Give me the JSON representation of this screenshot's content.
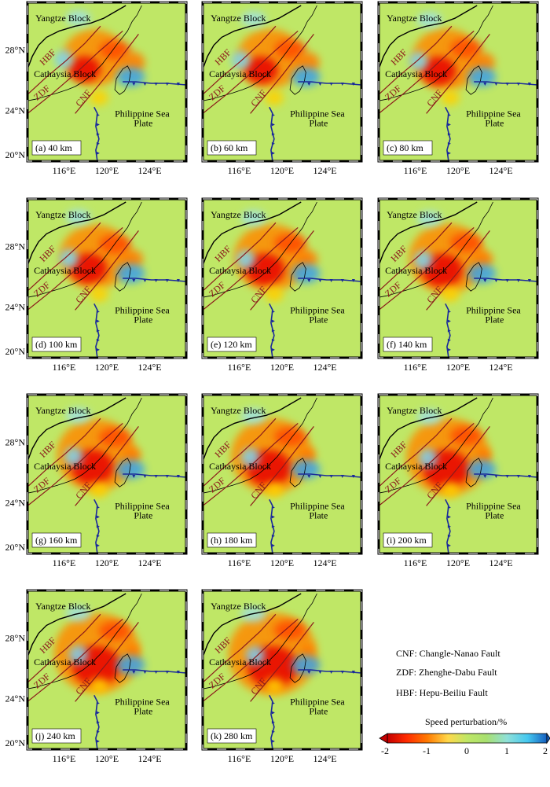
{
  "panels": [
    {
      "label": "(a) 40 km"
    },
    {
      "label": "(b) 60 km"
    },
    {
      "label": "(c) 80 km"
    },
    {
      "label": "(d) 100 km"
    },
    {
      "label": "(e) 120 km"
    },
    {
      "label": "(f) 140 km"
    },
    {
      "label": "(g) 160 km"
    },
    {
      "label": "(h) 180 km"
    },
    {
      "label": "(i) 200 km"
    },
    {
      "label": "(j) 240 km"
    },
    {
      "label": "(k) 280 km"
    }
  ],
  "map_labels": {
    "yangtze": "Yangtze Block",
    "cathaysia": "Cathaysia Block",
    "philippine_1": "Philippine Sea",
    "philippine_2": "Plate",
    "hbf": "HBF",
    "zdf": "ZDF",
    "cnf": "CNF"
  },
  "axes": {
    "lon_ticks": [
      "116°E",
      "120°E",
      "124°E"
    ],
    "lat_ticks": [
      "28°N",
      "24°N",
      "20°N"
    ]
  },
  "legend": {
    "cnf": "CNF: Changle-Nanao Fault",
    "zdf": "ZDF: Zhenghe-Dabu Fault",
    "hbf": "HBF: Hepu-Beiliu Fault"
  },
  "colorbar": {
    "title": "Speed perturbation/%",
    "ticks": [
      "-2",
      "-1",
      "0",
      "1",
      "2"
    ],
    "colors": [
      "#c40000",
      "#ff2a00",
      "#ff7a00",
      "#ffb400",
      "#ffd84a",
      "#c8e86a",
      "#a8e070",
      "#8fe0d8",
      "#45c8f0",
      "#1f95e0",
      "#1560c0"
    ]
  }
}
